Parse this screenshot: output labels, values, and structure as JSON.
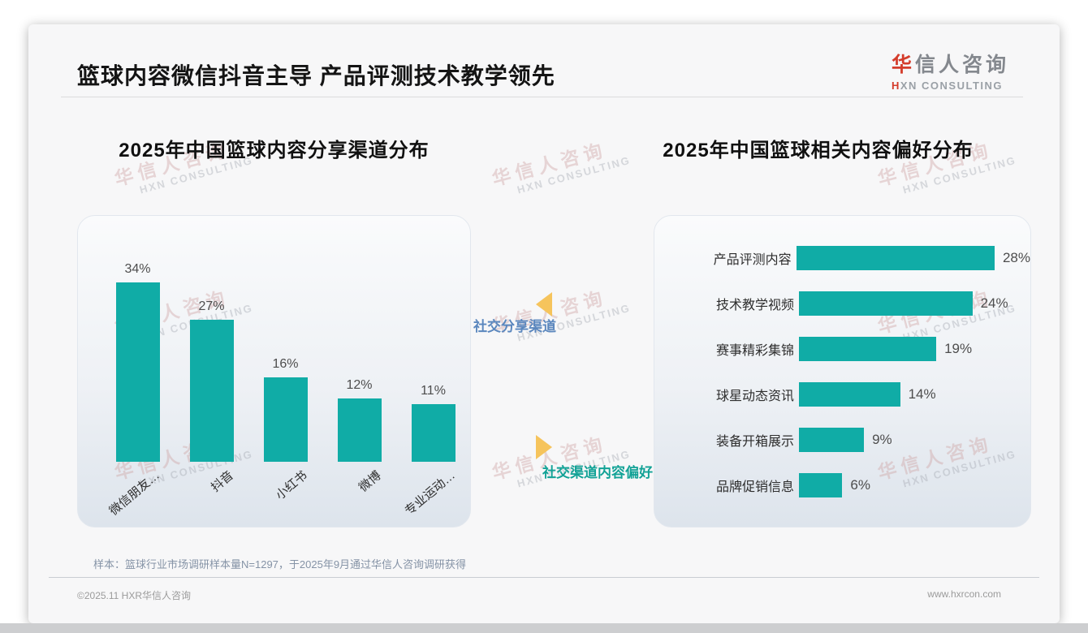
{
  "page": {
    "title": "篮球内容微信抖音主导 产品评测技术教学领先",
    "logo": {
      "zh_accent": "华",
      "zh_rest": "信人咨询",
      "en_accent": "H",
      "en_rest": "XN CONSULTING"
    },
    "watermark": {
      "line1": "华信人咨询",
      "line2": "HXN CONSULTING"
    },
    "sample_note": "样本：篮球行业市场调研样本量N=1297，于2025年9月通过华信人咨询调研获得",
    "footer": {
      "left": "©2025.11 HXR华信人咨询",
      "right": "www.hxrcon.com"
    }
  },
  "annotations": {
    "share_channel": "社交分享渠道",
    "content_preference": "社交渠道内容偏好"
  },
  "colors": {
    "bar_teal": "#10aca6",
    "annotation_blue": "#5b87be",
    "annotation_teal": "#12a296",
    "arrow_yellow": "#f6c45c",
    "logo_red": "#d43c2b"
  },
  "chart_data": [
    {
      "type": "bar",
      "orientation": "vertical",
      "title": "2025年中国篮球内容分享渠道分布",
      "categories": [
        "微信朋友…",
        "抖音",
        "小红书",
        "微博",
        "专业运动…"
      ],
      "values": [
        34,
        27,
        16,
        12,
        11
      ],
      "unit": "%",
      "ylim": [
        0,
        40
      ],
      "grid": false,
      "legend": "none"
    },
    {
      "type": "bar",
      "orientation": "horizontal",
      "title": "2025年中国篮球相关内容偏好分布",
      "categories": [
        "产品评测内容",
        "技术教学视频",
        "赛事精彩集锦",
        "球星动态资讯",
        "装备开箱展示",
        "品牌促销信息"
      ],
      "values": [
        28,
        24,
        19,
        14,
        9,
        6
      ],
      "unit": "%",
      "xlim": [
        0,
        30
      ],
      "grid": false,
      "legend": "none"
    }
  ]
}
